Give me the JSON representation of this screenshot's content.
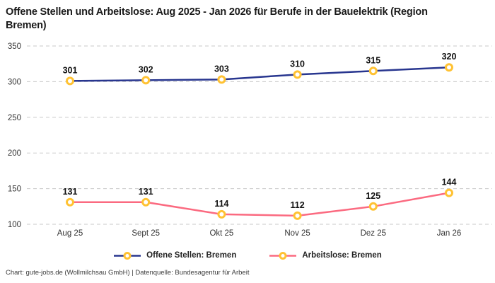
{
  "title": "Offene Stellen und Arbeitslose: Aug 2025 - Jan 2026 für Berufe in der Bauelektrik (Region Bremen)",
  "footer": "Chart: gute-jobs.de (Wollmilchsau GmbH) | Datenquelle: Bundesagentur für Arbeit",
  "colors": {
    "open_positions_line": "#28368f",
    "unemployed_line": "#fb6a80",
    "marker_stroke": "#ffc233",
    "marker_fill": "#ffffff",
    "grid": "#c9c9c9",
    "title_text": "#1a1a1a",
    "axis_text": "#333333",
    "label_text": "#111111"
  },
  "chart_data": {
    "type": "line",
    "categories": [
      "Aug 25",
      "Sept 25",
      "Okt 25",
      "Nov 25",
      "Dez 25",
      "Jan 26"
    ],
    "series": [
      {
        "name": "Offene Stellen: Bremen",
        "values": [
          301,
          302,
          303,
          310,
          315,
          320
        ],
        "color": "#28368f"
      },
      {
        "name": "Arbeitslose: Bremen",
        "values": [
          131,
          131,
          114,
          112,
          125,
          144
        ],
        "color": "#fb6a80"
      }
    ],
    "title": "Offene Stellen und Arbeitslose: Aug 2025 - Jan 2026 für Berufe in der Bauelektrik (Region Bremen)",
    "xlabel": "",
    "ylabel": "",
    "ylim": [
      100,
      350
    ],
    "yticks": [
      100,
      150,
      200,
      250,
      300,
      350
    ],
    "grid": true,
    "grid_style": "dashed",
    "legend_position": "bottom",
    "marker": {
      "shape": "circle",
      "fill": "#ffffff",
      "stroke": "#ffc233"
    }
  }
}
